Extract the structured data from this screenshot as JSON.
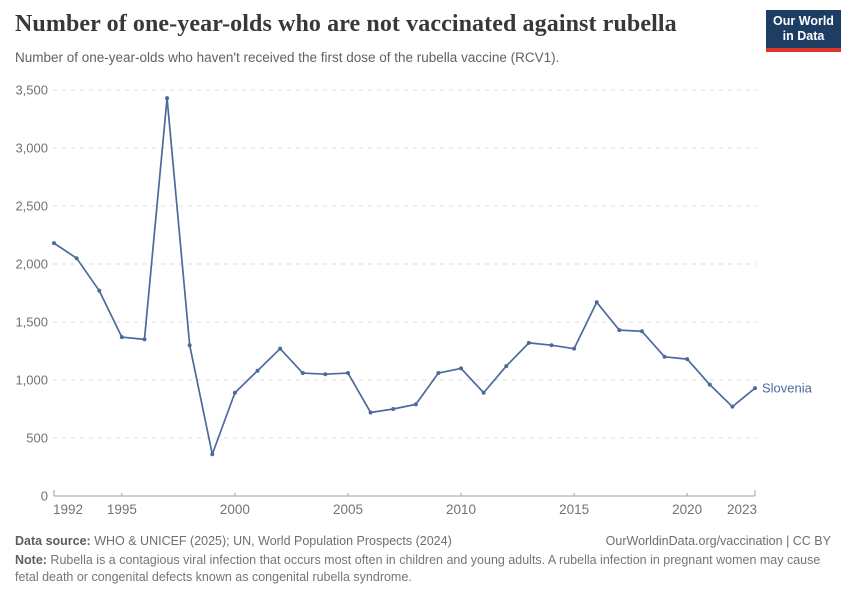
{
  "header": {
    "title": "Number of one-year-olds who are not vaccinated against rubella",
    "subtitle": "Number of one-year-olds who haven't received the first dose of the rubella vaccine (RCV1).",
    "logo": {
      "line1": "Our World",
      "line2": "in Data"
    }
  },
  "chart_data": {
    "type": "line",
    "title": "Number of one-year-olds who are not vaccinated against rubella",
    "x": [
      1992,
      1993,
      1994,
      1995,
      1996,
      1997,
      1998,
      1999,
      2000,
      2001,
      2002,
      2003,
      2004,
      2005,
      2006,
      2007,
      2008,
      2009,
      2010,
      2011,
      2012,
      2013,
      2014,
      2015,
      2016,
      2017,
      2018,
      2019,
      2020,
      2021,
      2022,
      2023
    ],
    "series": [
      {
        "name": "Slovenia",
        "color": "#4c6a9c",
        "values": [
          2180,
          2050,
          1770,
          1370,
          1350,
          3430,
          1300,
          360,
          890,
          1080,
          1270,
          1060,
          1050,
          1060,
          720,
          750,
          790,
          1060,
          1100,
          890,
          1120,
          1320,
          1300,
          1270,
          1670,
          1430,
          1420,
          1200,
          1180,
          960,
          770,
          930
        ]
      }
    ],
    "end_label": "Slovenia",
    "x_ticks": [
      1992,
      1995,
      2000,
      2005,
      2010,
      2015,
      2020,
      2023
    ],
    "y_ticks": [
      0,
      500,
      1000,
      1500,
      2000,
      2500,
      3000,
      3500
    ],
    "xlim": [
      1992,
      2023
    ],
    "ylim": [
      0,
      3500
    ],
    "xlabel": "",
    "ylabel": "",
    "grid": "horizontal-dashed",
    "legend_position": "end-of-line"
  },
  "footer": {
    "datasource_label": "Data source:",
    "datasource_text": " WHO & UNICEF (2025); UN, World Population Prospects (2024)",
    "link": "OurWorldinData.org/vaccination | CC BY",
    "note_label": "Note:",
    "note_text": " Rubella is a contagious viral infection that occurs most often in children and young adults. A rubella infection in pregnant women may cause fetal death or congenital defects known as congenital rubella syndrome."
  },
  "colors": {
    "line": "#4c6a9c",
    "grid": "#dcdcdc",
    "axis": "#a1a1a1",
    "tick_label": "#737373",
    "title": "#383838",
    "subtitle": "#616161",
    "logo_bg": "#1d3d63",
    "logo_stripe": "#dc352a"
  }
}
